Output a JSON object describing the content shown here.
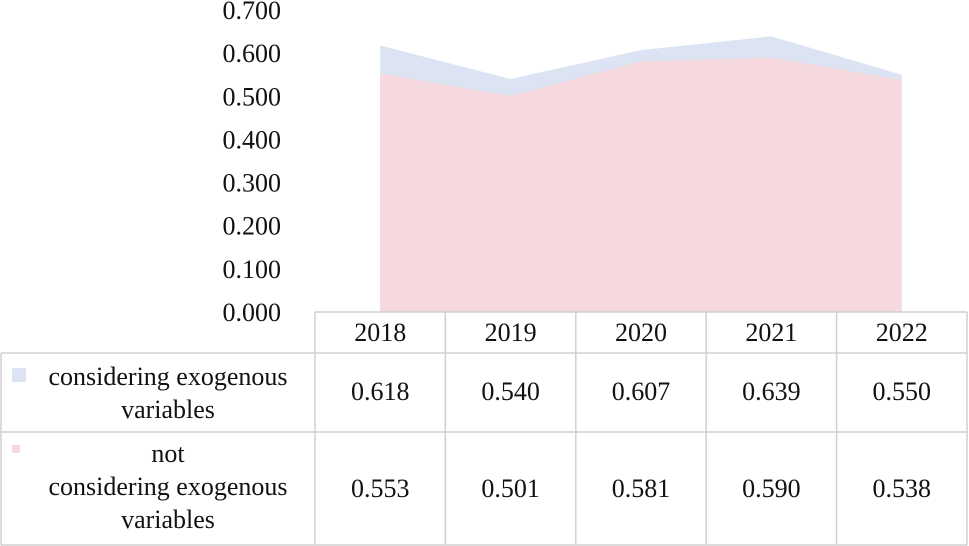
{
  "chart_data": {
    "type": "area",
    "x": [
      "2018",
      "2019",
      "2020",
      "2021",
      "2022"
    ],
    "series": [
      {
        "name": "considering exogenous variables",
        "values": [
          0.618,
          0.54,
          0.607,
          0.639,
          0.55
        ],
        "color": "#dce4f3"
      },
      {
        "name": "not considering exogenous variables",
        "values": [
          0.553,
          0.501,
          0.581,
          0.59,
          0.538
        ],
        "color": "#f5d9df"
      }
    ],
    "ylim": [
      0,
      0.7
    ],
    "yticks": [
      "0.000",
      "0.100",
      "0.200",
      "0.300",
      "0.400",
      "0.500",
      "0.600",
      "0.700"
    ],
    "table": {
      "row_labels": [
        [
          "considering exogenous",
          "variables"
        ],
        [
          "not",
          "considering exogenous",
          "variables"
        ]
      ],
      "cells": [
        [
          "0.618",
          "0.540",
          "0.607",
          "0.639",
          "0.550"
        ],
        [
          "0.553",
          "0.501",
          "0.581",
          "0.590",
          "0.538"
        ]
      ]
    },
    "legend": "table",
    "grid": false
  }
}
